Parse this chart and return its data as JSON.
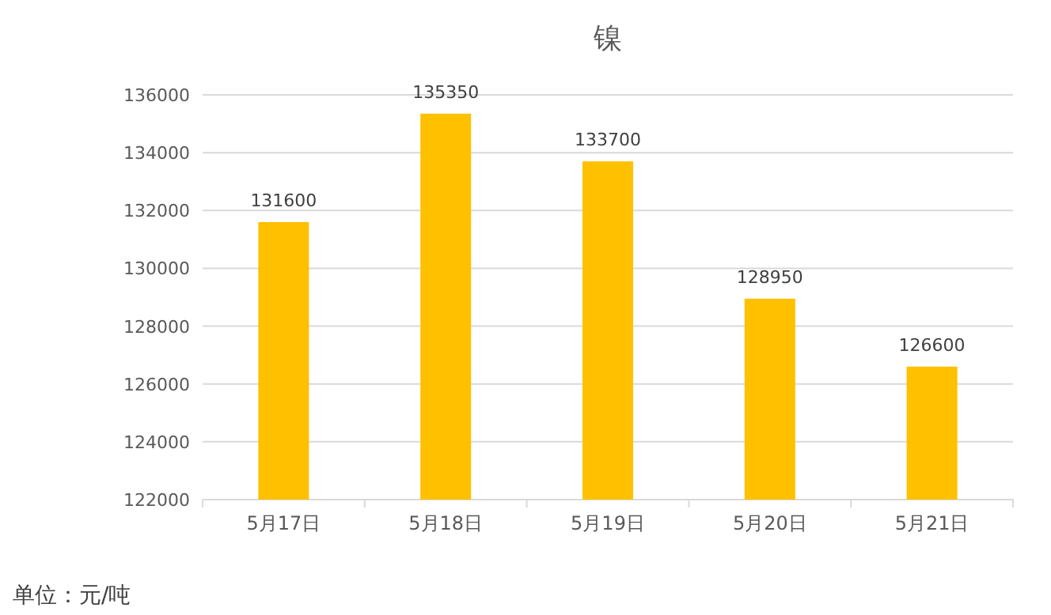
{
  "chart_data": {
    "type": "bar",
    "title": "镍",
    "categories": [
      "5月17日",
      "5月18日",
      "5月19日",
      "5月20日",
      "5月21日"
    ],
    "values": [
      131600,
      135350,
      133700,
      128950,
      126600
    ],
    "color": "#ffc000",
    "ylim": [
      122000,
      136000
    ],
    "yticks": [
      122000,
      124000,
      126000,
      128000,
      130000,
      132000,
      134000,
      136000
    ],
    "grid": "y",
    "data_labels": true,
    "annotations": [
      "单位：元/吨"
    ]
  }
}
